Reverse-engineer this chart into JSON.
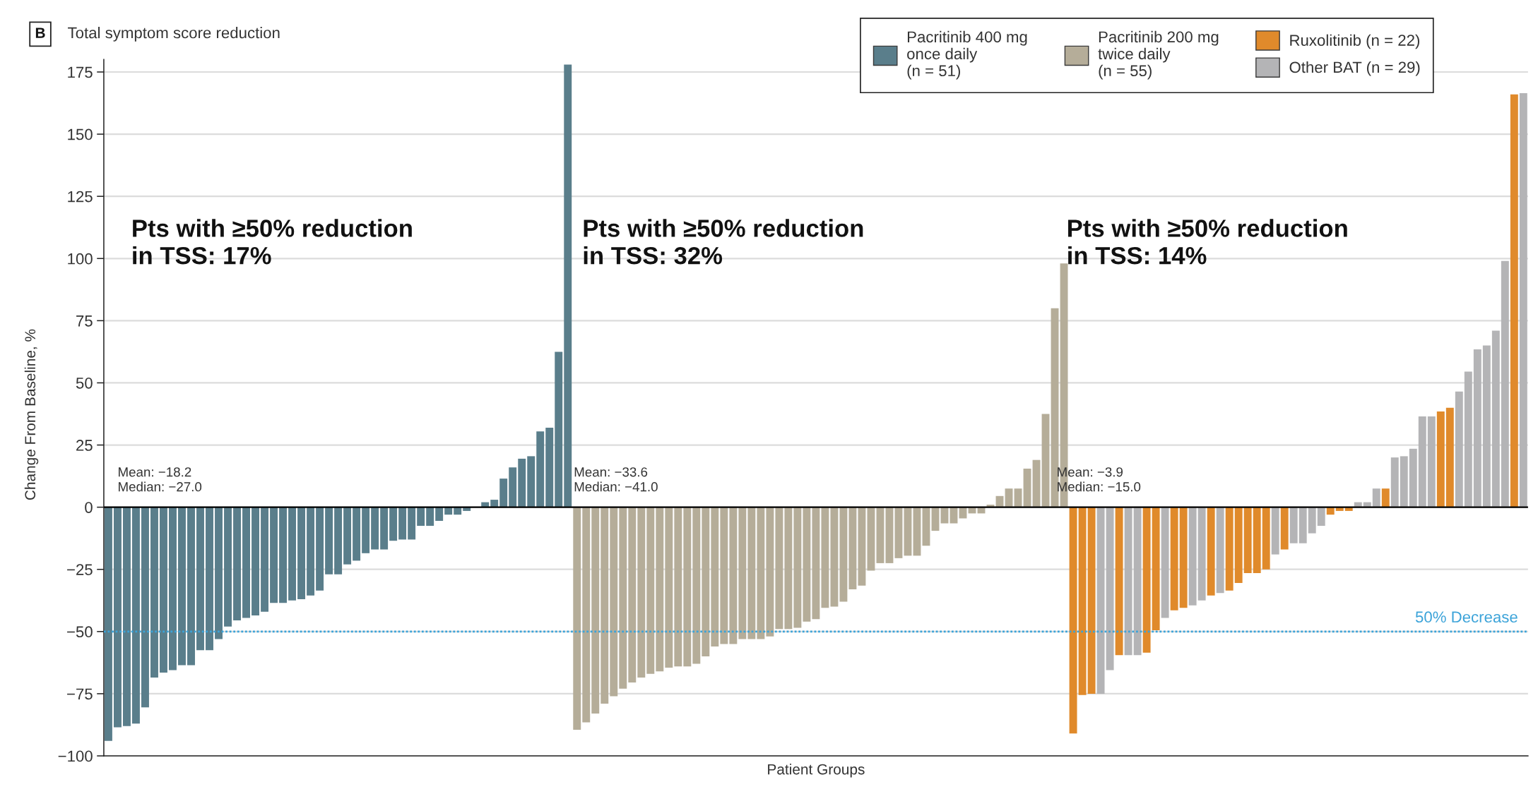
{
  "chart_data": {
    "type": "bar",
    "title": "Total symptom score reduction",
    "xlabel": "Patient Groups",
    "ylabel": "Change From Baseline, %",
    "categories": [
      null,
      null,
      null,
      null,
      null,
      null,
      null,
      null,
      null,
      null,
      null,
      null,
      null,
      null,
      null,
      null,
      null,
      null,
      null,
      null,
      null,
      null,
      null,
      null,
      null,
      null,
      null,
      null,
      null,
      null,
      null,
      null,
      null,
      null,
      null,
      null,
      null,
      null,
      null,
      null,
      null,
      null,
      null,
      null,
      null,
      null,
      null,
      null,
      null,
      null,
      null,
      null,
      null,
      null,
      null,
      null,
      null,
      null,
      null,
      null,
      null,
      null,
      null,
      null,
      null,
      null,
      null,
      null,
      null,
      null,
      null,
      null,
      null,
      null,
      null,
      null,
      null,
      null,
      null,
      null,
      null,
      null,
      null,
      null,
      null,
      null,
      null,
      null,
      null,
      null,
      null,
      null,
      null,
      null,
      null,
      null,
      null,
      null,
      null,
      null,
      null,
      null,
      null,
      null,
      null,
      null,
      null,
      null,
      null,
      null,
      null,
      null,
      null,
      null,
      null,
      null,
      null,
      null,
      null,
      null,
      null,
      null,
      null,
      null,
      null,
      null,
      null,
      null,
      null,
      null,
      null,
      null,
      null,
      null,
      null,
      null,
      null,
      null,
      null,
      null,
      null,
      null,
      null,
      null,
      null,
      null,
      null,
      null,
      null,
      null,
      null,
      null,
      null,
      null,
      null
    ],
    "series": [
      {
        "name": "Pacritinib 400 mg\nonce daily\n(n = 51)",
        "color": "#5a7e8b",
        "values": [
          -94,
          -88.5,
          -88,
          -87,
          -80.5,
          -68.5,
          -66.5,
          -65.5,
          -63.5,
          -63.5,
          -57.5,
          -57.5,
          -53,
          -48,
          -45.5,
          -44.5,
          -43.5,
          -42,
          -38.5,
          -38.5,
          -37.5,
          -37,
          -35.5,
          -33.5,
          -27,
          -27,
          -23,
          -21.5,
          -18.5,
          -17,
          -17,
          -13.5,
          -13,
          -13,
          -7.5,
          -7.5,
          -5.5,
          -3,
          -3,
          -1.5,
          0,
          2,
          3,
          11.5,
          16,
          19.5,
          20.5,
          30.5,
          32,
          62.5,
          178,
          null,
          null,
          null,
          null,
          null,
          null,
          null,
          null,
          null,
          null,
          null,
          null,
          null,
          null,
          null,
          null,
          null,
          null,
          null,
          null,
          null,
          null,
          null,
          null,
          null,
          null,
          null,
          null,
          null,
          null,
          null,
          null,
          null,
          null,
          null,
          null,
          null,
          null,
          null,
          null,
          null,
          null,
          null,
          null,
          null,
          null,
          null,
          null,
          null,
          null,
          null,
          null,
          null,
          null,
          null,
          null,
          null,
          null,
          null,
          null,
          null,
          null,
          null,
          null,
          null,
          null,
          null,
          null,
          null,
          null,
          null,
          null,
          null,
          null,
          null,
          null,
          null,
          null,
          null,
          null,
          null,
          null,
          null,
          null,
          null,
          null,
          null,
          null,
          null,
          null,
          null,
          null,
          null,
          null,
          null,
          null,
          null,
          null,
          null,
          null,
          null,
          null,
          null,
          null
        ]
      },
      {
        "name": "Pacritinib 200 mg\ntwice daily\n(n = 55)",
        "color": "#b5ad99",
        "values": [
          null,
          null,
          null,
          null,
          null,
          null,
          null,
          null,
          null,
          null,
          null,
          null,
          null,
          null,
          null,
          null,
          null,
          null,
          null,
          null,
          null,
          null,
          null,
          null,
          null,
          null,
          null,
          null,
          null,
          null,
          null,
          null,
          null,
          null,
          null,
          null,
          null,
          null,
          null,
          null,
          null,
          null,
          null,
          null,
          null,
          null,
          null,
          null,
          null,
          null,
          null,
          -89.5,
          -86.5,
          -83,
          -79,
          -76,
          -73,
          -70.5,
          -68.5,
          -67,
          -66,
          -64.5,
          -64,
          -64,
          -63,
          -60,
          -56,
          -55,
          -55,
          -53,
          -53,
          -53,
          -52,
          -49,
          -49,
          -48.5,
          -46,
          -45,
          -40.5,
          -40,
          -38,
          -33,
          -31.5,
          -25.5,
          -22.5,
          -22.5,
          -20.5,
          -19.5,
          -19.5,
          -15.5,
          -9.5,
          -6.5,
          -6.5,
          -4.5,
          -2.5,
          -2.5,
          1,
          4.5,
          7.5,
          7.5,
          15.5,
          19,
          37.5,
          80,
          98,
          null,
          null,
          null,
          null,
          null,
          null,
          null,
          null,
          null,
          null,
          null,
          null,
          null,
          null,
          null,
          null,
          null,
          null,
          null,
          null,
          null,
          null,
          null,
          null,
          null,
          null,
          null,
          null,
          null,
          null,
          null,
          null,
          null,
          null,
          null,
          null,
          null,
          null,
          null,
          null,
          null,
          null,
          null,
          null,
          null,
          null,
          null,
          null,
          null,
          null
        ]
      },
      {
        "name": "Ruxolitinib (n = 22)",
        "color": "#e08a2b",
        "values": [
          null,
          null,
          null,
          null,
          null,
          null,
          null,
          null,
          null,
          null,
          null,
          null,
          null,
          null,
          null,
          null,
          null,
          null,
          null,
          null,
          null,
          null,
          null,
          null,
          null,
          null,
          null,
          null,
          null,
          null,
          null,
          null,
          null,
          null,
          null,
          null,
          null,
          null,
          null,
          null,
          null,
          null,
          null,
          null,
          null,
          null,
          null,
          null,
          null,
          null,
          null,
          null,
          null,
          null,
          null,
          null,
          null,
          null,
          null,
          null,
          null,
          null,
          null,
          null,
          null,
          null,
          null,
          null,
          null,
          null,
          null,
          null,
          null,
          null,
          null,
          null,
          null,
          null,
          null,
          null,
          null,
          null,
          null,
          null,
          null,
          null,
          null,
          null,
          null,
          null,
          null,
          null,
          null,
          null,
          null,
          null,
          null,
          null,
          null,
          null,
          null,
          null,
          null,
          null,
          null,
          -91,
          -75.5,
          -75,
          null,
          null,
          -59.5,
          null,
          null,
          -58.5,
          -49.5,
          null,
          -41.5,
          -40.5,
          null,
          null,
          -35.5,
          null,
          -33.5,
          -30.5,
          -26.5,
          -26.5,
          -25,
          null,
          -17,
          null,
          null,
          null,
          null,
          -3,
          -1.5,
          -1.5,
          null,
          null,
          null,
          7.5,
          null,
          null,
          null,
          null,
          null,
          38.5,
          40,
          null,
          null,
          null,
          null,
          null,
          null,
          166,
          null
        ]
      },
      {
        "name": "Other BAT (n = 29)",
        "color": "#b4b4b6",
        "values": [
          null,
          null,
          null,
          null,
          null,
          null,
          null,
          null,
          null,
          null,
          null,
          null,
          null,
          null,
          null,
          null,
          null,
          null,
          null,
          null,
          null,
          null,
          null,
          null,
          null,
          null,
          null,
          null,
          null,
          null,
          null,
          null,
          null,
          null,
          null,
          null,
          null,
          null,
          null,
          null,
          null,
          null,
          null,
          null,
          null,
          null,
          null,
          null,
          null,
          null,
          null,
          null,
          null,
          null,
          null,
          null,
          null,
          null,
          null,
          null,
          null,
          null,
          null,
          null,
          null,
          null,
          null,
          null,
          null,
          null,
          null,
          null,
          null,
          null,
          null,
          null,
          null,
          null,
          null,
          null,
          null,
          null,
          null,
          null,
          null,
          null,
          null,
          null,
          null,
          null,
          null,
          null,
          null,
          null,
          null,
          null,
          null,
          null,
          null,
          null,
          null,
          null,
          null,
          null,
          null,
          null,
          null,
          null,
          -75,
          -65.5,
          null,
          -59.5,
          -59.5,
          null,
          null,
          -44.5,
          null,
          null,
          -39.5,
          -37.5,
          null,
          -34.5,
          null,
          null,
          null,
          null,
          null,
          -19,
          null,
          -14.5,
          -14.5,
          -10.5,
          -7.5,
          null,
          null,
          null,
          2,
          2,
          7.5,
          null,
          20,
          20.5,
          23.5,
          36.5,
          36.5,
          null,
          null,
          46.5,
          54.5,
          63.5,
          65,
          71,
          99,
          null,
          166.5
        ]
      }
    ],
    "ylim": [
      -100,
      180
    ],
    "yticks": [
      {
        "value": -100,
        "label": "−100"
      },
      {
        "value": -75,
        "label": "−75"
      },
      {
        "value": -50,
        "label": "−50"
      },
      {
        "value": -25,
        "label": "−25"
      },
      0,
      25,
      50,
      75,
      100,
      125,
      150,
      175
    ],
    "grid": "y",
    "legend": "top right",
    "tick_labels": "y",
    "ref_lines": [
      {
        "axis": "y",
        "value": -50,
        "label": "50% Decrease",
        "color": "#3ba3d9",
        "line_style": "dotted"
      },
      {
        "axis": "y",
        "value": 0,
        "color": "#000000",
        "line_style": "solid"
      }
    ],
    "annotations": [
      "B",
      "Pts with ≥50% reduction\nin TSS: 17%",
      "Pts with ≥50% reduction\nin TSS: 32%",
      "Pts with ≥50% reduction\nin TSS: 14%",
      "Mean: −18.2\nMedian: −27.0",
      "Mean: −33.6\nMedian: −41.0",
      "Mean: −3.9\nMedian: −15.0"
    ]
  }
}
